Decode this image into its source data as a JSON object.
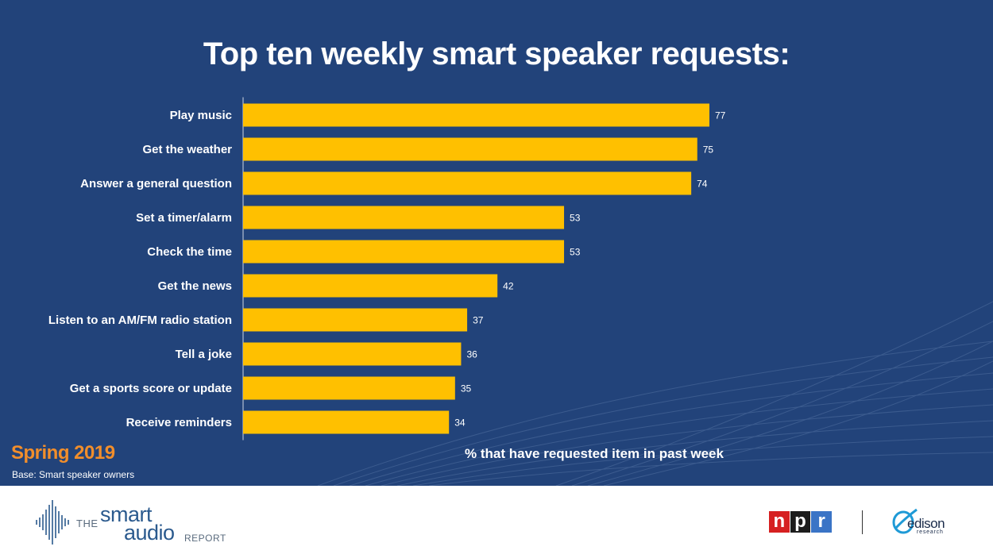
{
  "slide": {
    "title": "Top ten weekly smart speaker requests:",
    "season": "Spring 2019",
    "base_note": "Base: Smart speaker owners"
  },
  "chart_data": {
    "type": "bar",
    "orientation": "horizontal",
    "categories": [
      "Play music",
      "Get the weather",
      "Answer a general question",
      "Set a timer/alarm",
      "Check the time",
      "Get the news",
      "Listen to an AM/FM radio station",
      "Tell a joke",
      "Get a sports score or update",
      "Receive reminders"
    ],
    "values": [
      77,
      75,
      74,
      53,
      53,
      42,
      37,
      36,
      35,
      34
    ],
    "value_labels": [
      "77",
      "75",
      "74",
      "53",
      "53",
      "42",
      "37",
      "36",
      "35",
      "34"
    ],
    "xlabel": "% that have requested item in past week",
    "xlim": [
      0,
      100
    ],
    "grid": false,
    "legend": "none",
    "bar_color": "#ffc000"
  },
  "footer": {
    "logo_the": "THE",
    "logo_smart": "smart",
    "logo_audio": "audio",
    "logo_report": "REPORT",
    "npr_letters": [
      "n",
      "p",
      "r"
    ],
    "edison_word": "edison",
    "edison_sub": "research",
    "icons": [
      "soundwave-icon",
      "npr-logo",
      "edison-logo"
    ]
  },
  "colors": {
    "background": "#22437a",
    "bar": "#ffc000",
    "season": "#f28e2b",
    "text": "#ffffff"
  }
}
